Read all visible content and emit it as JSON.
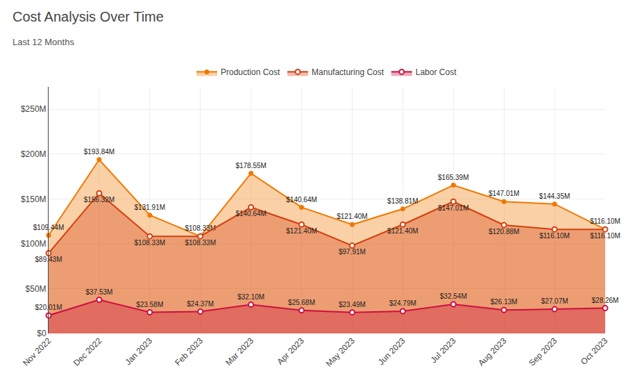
{
  "chart_data": {
    "type": "area",
    "title": "Cost Analysis Over Time",
    "subtitle": "Last 12 Months",
    "categories": [
      "Nov 2022",
      "Dec 2022",
      "Jan 2023",
      "Feb 2023",
      "Mar 2023",
      "Apr 2023",
      "May 2023",
      "Jun 2023",
      "Jul 2023",
      "Aug 2023",
      "Sep 2023",
      "Oct 2023"
    ],
    "series": [
      {
        "name": "Production Cost",
        "color": "#F07800",
        "marker": "circle",
        "values": [
          109.44,
          193.84,
          131.91,
          108.33,
          178.55,
          140.64,
          121.4,
          138.81,
          165.39,
          147.01,
          144.35,
          116.1
        ],
        "value_labels": [
          "$109.44M",
          "$193.84M",
          "$131.91M",
          "$108.33M",
          "$178.55M",
          "$140.64M",
          "$121.40M",
          "$138.81M",
          "$165.39M",
          "$147.01M",
          "$144.35M",
          "$116.10M"
        ]
      },
      {
        "name": "Manufacturing Cost",
        "color": "#D44010",
        "marker": "circle-open",
        "values": [
          89.43,
          156.32,
          108.33,
          108.33,
          140.64,
          121.4,
          97.91,
          121.4,
          147.01,
          120.88,
          116.1,
          116.1
        ],
        "value_labels": [
          "$89.43M",
          "$156.32M",
          "$108.33M",
          "$108.33M",
          "$140.64M",
          "$121.40M",
          "$97.91M",
          "$121.40M",
          "$147.01M",
          "$120.88M",
          "$116.10M",
          "$116.10M"
        ]
      },
      {
        "name": "Labor Cost",
        "color": "#CC1040",
        "marker": "circle-open",
        "values": [
          20.01,
          37.53,
          23.58,
          24.37,
          32.1,
          25.68,
          23.49,
          24.79,
          32.54,
          26.13,
          27.07,
          28.26
        ],
        "value_labels": [
          "$20.01M",
          "$37.53M",
          "$23.58M",
          "$24.37M",
          "$32.10M",
          "$25.68M",
          "$23.49M",
          "$24.79M",
          "$32.54M",
          "$26.13M",
          "$27.07M",
          "$28.26M"
        ]
      }
    ],
    "ylim": [
      0,
      275
    ],
    "yticks": [
      {
        "value": 0,
        "label": "$0"
      },
      {
        "value": 50,
        "label": "$50M"
      },
      {
        "value": 100,
        "label": "$100M"
      },
      {
        "value": 150,
        "label": "$150M"
      },
      {
        "value": 200,
        "label": "$200M"
      },
      {
        "value": 250,
        "label": "$250M"
      }
    ],
    "grid": true,
    "legend": "top",
    "data_labels": true
  }
}
